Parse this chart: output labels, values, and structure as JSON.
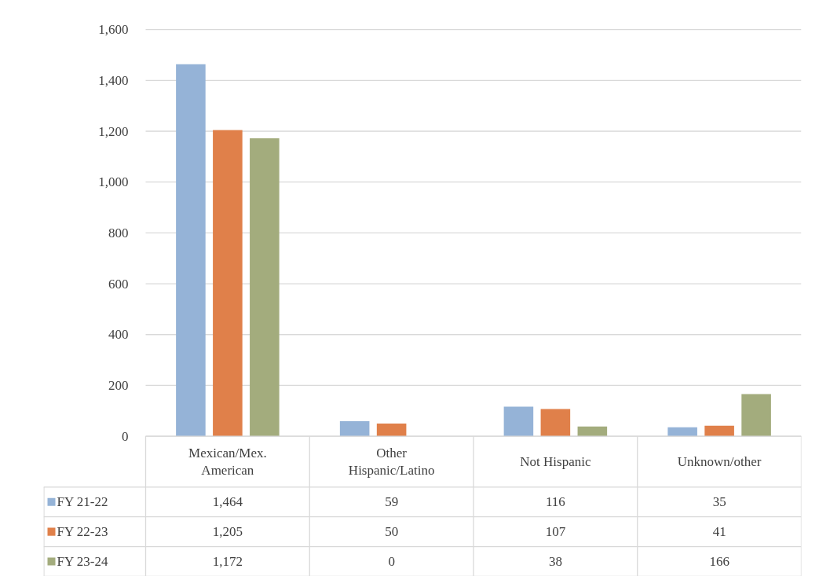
{
  "chart_data": {
    "type": "bar",
    "categories": [
      "Mexican/Mex. American",
      "Other Hispanic/Latino",
      "Not Hispanic",
      "Unknown/other"
    ],
    "series": [
      {
        "name": "FY 21-22",
        "color": "#95b3d7",
        "values": [
          1464,
          59,
          116,
          35
        ],
        "value_labels": [
          "1,464",
          "59",
          "116",
          "35"
        ]
      },
      {
        "name": "FY 22-23",
        "color": "#e0804a",
        "values": [
          1205,
          50,
          107,
          41
        ],
        "value_labels": [
          "1,205",
          "50",
          "107",
          "41"
        ]
      },
      {
        "name": "FY 23-24",
        "color": "#a3ac7d",
        "values": [
          1172,
          0,
          38,
          166
        ],
        "value_labels": [
          "1,172",
          "0",
          "38",
          "166"
        ]
      }
    ],
    "ylim": [
      0,
      1600
    ],
    "yticks": [
      0,
      {
        "value": 200,
        "label": "200"
      },
      {
        "value": 400,
        "label": "400"
      },
      {
        "value": 600,
        "label": "600"
      },
      {
        "value": 800,
        "label": "800"
      },
      {
        "value": 1000,
        "label": "1,000"
      },
      {
        "value": 1200,
        "label": "1,200"
      },
      {
        "value": 1400,
        "label": "1,400"
      },
      {
        "value": 1600,
        "label": "1,600"
      }
    ],
    "grid": "y",
    "legend": "bottom"
  }
}
